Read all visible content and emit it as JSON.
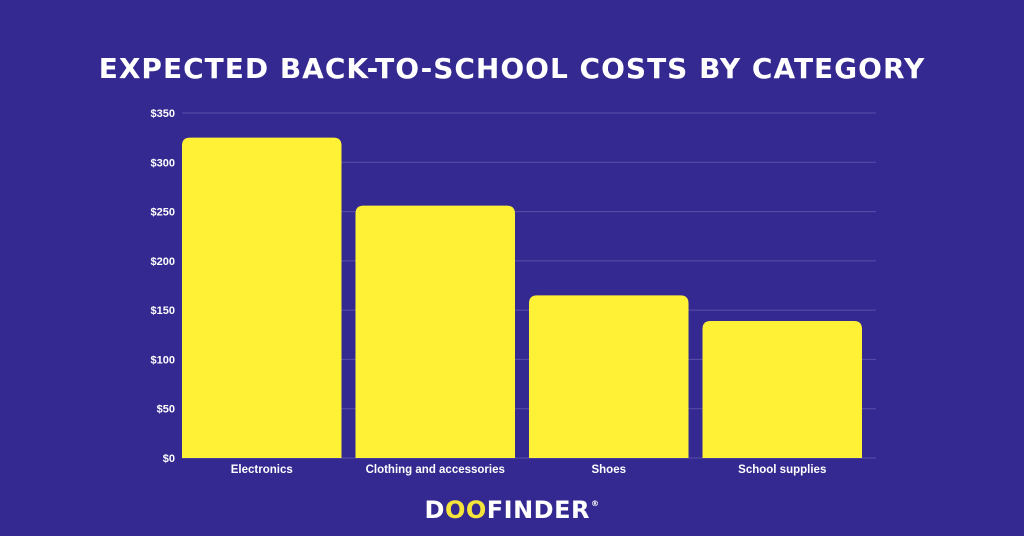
{
  "chart_data": {
    "type": "bar",
    "title": "EXPECTED BACK-TO-SCHOOL COSTS BY CATEGORY",
    "categories": [
      "Electronics",
      "Clothing and accessories",
      "Shoes",
      "School supplies"
    ],
    "values": [
      325,
      256,
      165,
      139
    ],
    "xlabel": "",
    "ylabel": "",
    "ylim": [
      0,
      350
    ],
    "yticks": [
      "$0",
      "$50",
      "$100",
      "$150",
      "$200",
      "$250",
      "$300",
      "$350"
    ],
    "grid": true,
    "legend": "none",
    "colors": {
      "background": "#342990",
      "bar": "#fff236",
      "grid": "#5a50a8",
      "text": "#ffffff"
    }
  },
  "brand": {
    "prefix": "D",
    "oo": "OO",
    "suffix": "FINDER",
    "reg": "®",
    "accent": "#f5e43a"
  }
}
